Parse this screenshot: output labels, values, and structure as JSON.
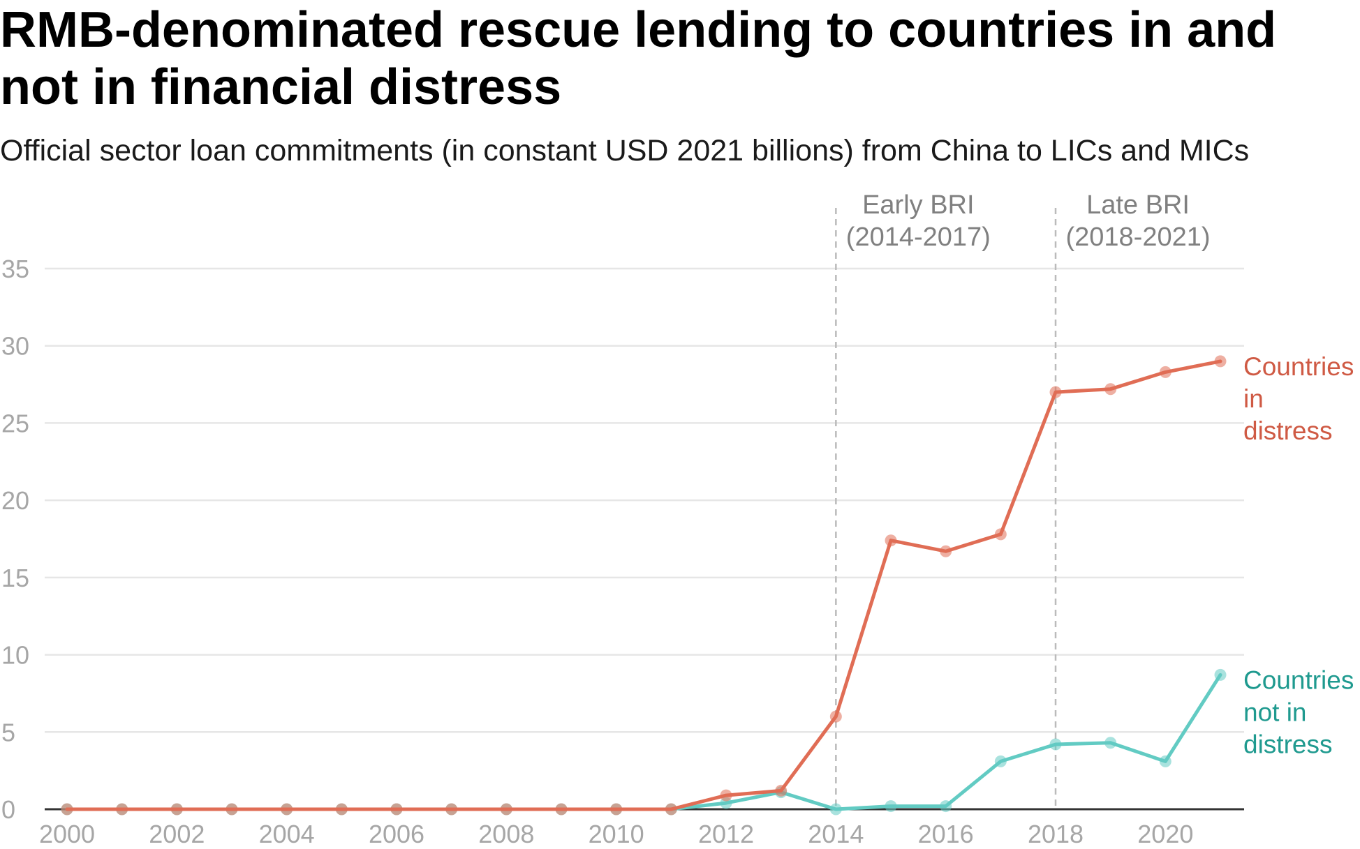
{
  "title": "RMB-denominated rescue lending to countries in and not in financial distress",
  "subtitle": "Official sector loan commitments (in constant USD 2021 billions) from China to LICs and MICs",
  "colors": {
    "in_distress": "#e06d55",
    "not_in_distress": "#62cbc3",
    "in_distress_label": "#cf5a44",
    "not_in_distress_label": "#1f9a8f",
    "grid": "#e6e6e6",
    "axis": "#333333",
    "tick": "#a6a6a6",
    "period_text": "#808080",
    "period_line": "#bbbbbb"
  },
  "chart_data": {
    "type": "line",
    "x": [
      2000,
      2001,
      2002,
      2003,
      2004,
      2005,
      2006,
      2007,
      2008,
      2009,
      2010,
      2011,
      2012,
      2013,
      2014,
      2015,
      2016,
      2017,
      2018,
      2019,
      2020,
      2021
    ],
    "xticks": [
      2000,
      2002,
      2004,
      2006,
      2008,
      2010,
      2012,
      2014,
      2016,
      2018,
      2020
    ],
    "xlim": [
      2000,
      2021
    ],
    "yticks": [
      0,
      5,
      10,
      15,
      20,
      25,
      30,
      35
    ],
    "ylim": [
      0,
      35
    ],
    "grid": true,
    "series": [
      {
        "name": "Countries in distress",
        "label_lines": [
          "Countries",
          "in",
          "distress"
        ],
        "values": [
          0,
          0,
          0,
          0,
          0,
          0,
          0,
          0,
          0,
          0,
          0,
          0,
          0.9,
          1.2,
          6.0,
          17.4,
          16.7,
          17.8,
          27.0,
          27.2,
          28.3,
          29.0
        ]
      },
      {
        "name": "Countries not in distress",
        "label_lines": [
          "Countries",
          "not in",
          "distress"
        ],
        "values": [
          0,
          0,
          0,
          0,
          0,
          0,
          0,
          0,
          0,
          0,
          0,
          0,
          0.4,
          1.1,
          0.0,
          0.2,
          0.2,
          3.1,
          4.2,
          4.3,
          3.1,
          8.7
        ]
      }
    ],
    "periods": [
      {
        "start": 2014,
        "end": 2017,
        "label_lines": [
          "Early BRI",
          "(2014-2017)"
        ]
      },
      {
        "start": 2018,
        "end": 2021,
        "label_lines": [
          "Late BRI",
          "(2018-2021)"
        ]
      }
    ]
  }
}
